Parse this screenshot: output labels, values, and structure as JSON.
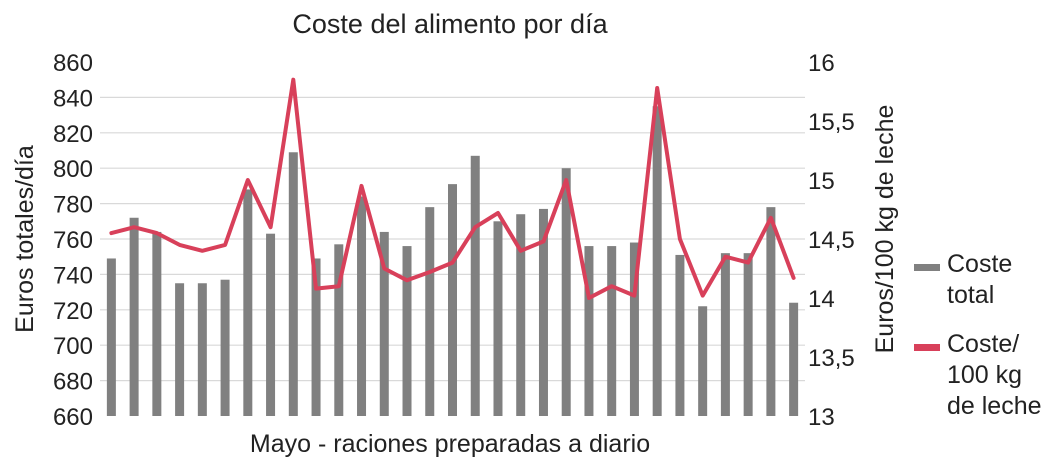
{
  "chart_data": {
    "type": "bar",
    "title": "Coste del alimento por día",
    "xlabel": "Mayo - raciones preparadas a diario",
    "ylabel": "Euros totales/día",
    "y2label": "Euros/100 kg de leche",
    "ylim": [
      660,
      860
    ],
    "y2lim": [
      13,
      16
    ],
    "yticks": [
      "860",
      "840",
      "820",
      "800",
      "780",
      "760",
      "740",
      "720",
      "700",
      "680",
      "660"
    ],
    "y2ticks": [
      "16",
      "15,5",
      "15",
      "14,5",
      "14",
      "13,5",
      "13"
    ],
    "grid": true,
    "legend_position": "right",
    "series": [
      {
        "name": "Coste total",
        "type": "bar",
        "axis": "left",
        "color": "#808080",
        "legend_lines": [
          "Coste",
          "total"
        ],
        "values": [
          749,
          772,
          764,
          735,
          735,
          737,
          788,
          763,
          809,
          749,
          757,
          784,
          764,
          756,
          778,
          791,
          807,
          770,
          774,
          777,
          800,
          756,
          756,
          758,
          835,
          751,
          722,
          752,
          752,
          778,
          724
        ]
      },
      {
        "name": "Coste/100 kg de leche",
        "type": "line",
        "axis": "right",
        "color": "#d8405a",
        "legend_lines": [
          "Coste/",
          "100 kg",
          "de leche"
        ],
        "values": [
          14.55,
          14.6,
          14.55,
          14.45,
          14.4,
          14.45,
          15.0,
          14.6,
          15.85,
          14.08,
          14.1,
          14.95,
          14.25,
          14.15,
          14.22,
          14.3,
          14.6,
          14.72,
          14.4,
          14.48,
          15.0,
          14.0,
          14.1,
          14.02,
          15.78,
          14.5,
          14.02,
          14.35,
          14.3,
          14.68,
          14.17
        ]
      }
    ]
  }
}
